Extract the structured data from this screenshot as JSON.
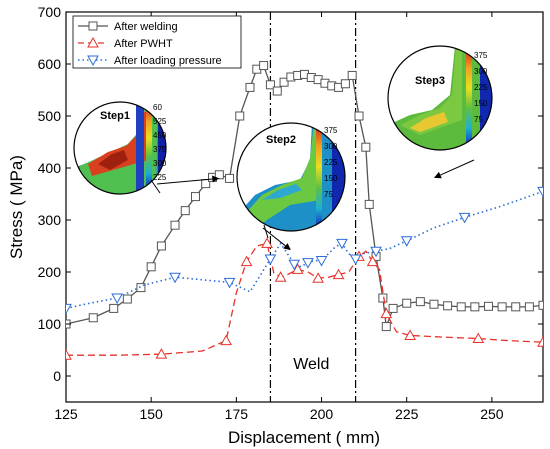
{
  "chart_data": {
    "type": "line",
    "xlabel": "Displacement ( mm)",
    "ylabel": "Stress ( MPa)",
    "xlim": [
      125,
      265
    ],
    "ylim": [
      -50,
      700
    ],
    "xticks": [
      125,
      150,
      175,
      200,
      225,
      250
    ],
    "yticks": [
      0,
      100,
      200,
      300,
      400,
      500,
      600,
      700
    ],
    "grid": false,
    "legend_position": "top-left",
    "series": [
      {
        "name": "After welding",
        "color": "#555555",
        "line_style": "solid",
        "marker": "square",
        "x": [
          125,
          133,
          139,
          143,
          147,
          150,
          153,
          157,
          160,
          163,
          166,
          168,
          170,
          173,
          176,
          179,
          181,
          183,
          185,
          187,
          189,
          191,
          193,
          195,
          197,
          199,
          201,
          203,
          205,
          207,
          209,
          211,
          213,
          214,
          216,
          218,
          219,
          221,
          225,
          229,
          233,
          237,
          241,
          245,
          249,
          253,
          257,
          261,
          265
        ],
        "y": [
          100,
          112,
          130,
          148,
          170,
          210,
          250,
          290,
          318,
          345,
          370,
          382,
          387,
          380,
          500,
          555,
          590,
          597,
          560,
          548,
          565,
          575,
          578,
          580,
          574,
          570,
          563,
          558,
          555,
          562,
          578,
          500,
          440,
          330,
          230,
          150,
          95,
          130,
          140,
          143,
          138,
          135,
          133,
          133,
          134,
          133,
          133,
          133,
          136
        ]
      },
      {
        "name": "After PWHT",
        "color": "#e8322a",
        "line_style": "dashed",
        "marker": "triangle-up",
        "x": [
          125,
          140,
          153,
          165,
          172,
          175,
          178,
          181,
          184,
          186,
          188,
          190,
          193,
          196,
          199,
          202,
          205,
          208,
          211,
          213,
          215,
          217,
          219,
          222,
          226,
          235,
          246,
          255,
          265
        ],
        "y": [
          40,
          40,
          42,
          48,
          68,
          160,
          220,
          250,
          255,
          198,
          190,
          195,
          205,
          200,
          188,
          190,
          195,
          200,
          230,
          240,
          220,
          205,
          120,
          85,
          78,
          75,
          72,
          68,
          65
        ]
      },
      {
        "name": "After loading pressure",
        "color": "#2b6cd8",
        "line_style": "dotted",
        "marker": "triangle-down",
        "x": [
          125,
          132,
          140,
          148,
          157,
          165,
          173,
          179,
          185,
          188,
          192,
          194,
          196,
          198,
          200,
          204,
          206,
          208,
          210,
          212,
          216,
          220,
          225,
          233,
          242,
          252,
          265
        ],
        "y": [
          130,
          140,
          150,
          175,
          190,
          185,
          180,
          162,
          225,
          255,
          215,
          210,
          218,
          222,
          222,
          248,
          255,
          235,
          225,
          235,
          240,
          245,
          260,
          285,
          305,
          325,
          355
        ]
      }
    ],
    "vertical_lines": [
      {
        "x": 185,
        "style": "dash-dot",
        "color": "#000000"
      },
      {
        "x": 210,
        "style": "dash-dot",
        "color": "#000000"
      }
    ],
    "annotations": [
      {
        "text": "Weld",
        "x": 197,
        "y": 25
      }
    ],
    "insets": [
      {
        "title": "Step1",
        "colorbar_labels": [
          "60",
          "525",
          "450",
          "375",
          "300",
          "225"
        ],
        "arrow_to": [
          170,
          380
        ]
      },
      {
        "title": "Step2",
        "colorbar_labels": [
          "375",
          "300",
          "225",
          "150",
          "75"
        ],
        "arrow_to": [
          191,
          242
        ]
      },
      {
        "title": "Step3",
        "colorbar_labels": [
          "375",
          "300",
          "225",
          "150",
          "75"
        ],
        "arrow_to": [
          233,
          381
        ]
      }
    ]
  }
}
